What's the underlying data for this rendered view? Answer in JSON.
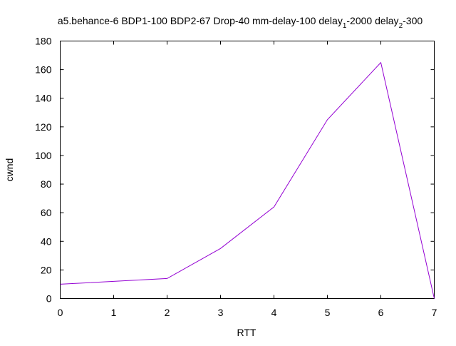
{
  "chart_data": {
    "type": "line",
    "title": {
      "main": "a5.behance-6 BDP1-100 BDP2-67 Drop-40 mm-delay-100 delay",
      "sub1": "1",
      "mid": "-2000 delay",
      "sub2": "2",
      "end": "-300"
    },
    "xlabel": "RTT",
    "ylabel": "cwnd",
    "xlim": [
      0,
      7
    ],
    "ylim": [
      0,
      180
    ],
    "xticks": [
      0,
      1,
      2,
      3,
      4,
      5,
      6,
      7
    ],
    "yticks": [
      0,
      20,
      40,
      60,
      80,
      100,
      120,
      140,
      160,
      180
    ],
    "grid": false,
    "series": [
      {
        "color": "#9400d3",
        "x": [
          0,
          1,
          2,
          3,
          4,
          5,
          6,
          7
        ],
        "y": [
          10,
          12,
          14,
          35,
          64,
          125,
          165,
          0
        ]
      }
    ]
  }
}
